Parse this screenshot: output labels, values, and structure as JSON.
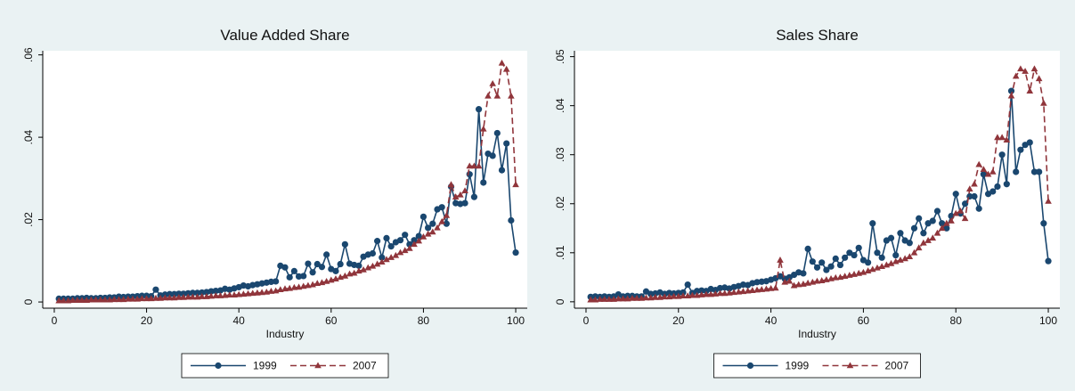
{
  "chart_data": [
    {
      "type": "line",
      "title": "Value Added Share",
      "x_label": "Industry",
      "x": [
        1,
        2,
        3,
        4,
        5,
        6,
        7,
        8,
        9,
        10,
        11,
        12,
        13,
        14,
        15,
        16,
        17,
        18,
        19,
        20,
        21,
        22,
        23,
        24,
        25,
        26,
        27,
        28,
        29,
        30,
        31,
        32,
        33,
        34,
        35,
        36,
        37,
        38,
        39,
        40,
        41,
        42,
        43,
        44,
        45,
        46,
        47,
        48,
        49,
        50,
        51,
        52,
        53,
        54,
        55,
        56,
        57,
        58,
        59,
        60,
        61,
        62,
        63,
        64,
        65,
        66,
        67,
        68,
        69,
        70,
        71,
        72,
        73,
        74,
        75,
        76,
        77,
        78,
        79,
        80,
        81,
        82,
        83,
        84,
        85,
        86,
        87,
        88,
        89,
        90,
        91,
        92,
        93,
        94,
        95,
        96,
        97,
        98,
        99,
        100
      ],
      "series": [
        {
          "name": "1999",
          "color": "#1a476f",
          "marker": "circle",
          "dash": false,
          "values": [
            0.0008,
            0.0008,
            0.0008,
            0.0008,
            0.0009,
            0.0009,
            0.001,
            0.0009,
            0.0009,
            0.001,
            0.001,
            0.0011,
            0.0011,
            0.0013,
            0.0012,
            0.0013,
            0.0013,
            0.0014,
            0.0015,
            0.0015,
            0.0014,
            0.003,
            0.0016,
            0.0018,
            0.0019,
            0.0019,
            0.002,
            0.002,
            0.0021,
            0.0022,
            0.0022,
            0.0023,
            0.0024,
            0.0026,
            0.0027,
            0.0028,
            0.0032,
            0.003,
            0.0033,
            0.0036,
            0.004,
            0.0038,
            0.0041,
            0.0043,
            0.0045,
            0.0047,
            0.0049,
            0.005,
            0.0088,
            0.0084,
            0.006,
            0.0075,
            0.0062,
            0.0063,
            0.0093,
            0.0072,
            0.0092,
            0.0085,
            0.0115,
            0.008,
            0.0075,
            0.0092,
            0.014,
            0.0093,
            0.009,
            0.0088,
            0.011,
            0.0115,
            0.0118,
            0.0148,
            0.0108,
            0.0155,
            0.0135,
            0.0145,
            0.015,
            0.0163,
            0.014,
            0.015,
            0.016,
            0.0207,
            0.018,
            0.019,
            0.0225,
            0.023,
            0.019,
            0.028,
            0.024,
            0.0238,
            0.024,
            0.031,
            0.0255,
            0.0468,
            0.029,
            0.036,
            0.0355,
            0.041,
            0.032,
            0.0385,
            0.0198,
            0.012
          ]
        },
        {
          "name": "2007",
          "color": "#90353b",
          "marker": "triangle",
          "dash": true,
          "values": [
            0.0003,
            0.0003,
            0.0003,
            0.0004,
            0.0004,
            0.0004,
            0.0004,
            0.0005,
            0.0005,
            0.0005,
            0.0005,
            0.0005,
            0.0006,
            0.0006,
            0.0006,
            0.0007,
            0.0007,
            0.0007,
            0.0008,
            0.0008,
            0.0008,
            0.0009,
            0.0009,
            0.001,
            0.001,
            0.001,
            0.0011,
            0.0011,
            0.0012,
            0.0012,
            0.0012,
            0.0013,
            0.0013,
            0.0014,
            0.0015,
            0.0015,
            0.0016,
            0.0017,
            0.0017,
            0.0018,
            0.0019,
            0.002,
            0.0021,
            0.0022,
            0.0023,
            0.0024,
            0.0026,
            0.0027,
            0.003,
            0.0032,
            0.0033,
            0.0035,
            0.0036,
            0.0038,
            0.004,
            0.0042,
            0.0045,
            0.0047,
            0.005,
            0.0053,
            0.0056,
            0.006,
            0.0063,
            0.0068,
            0.007,
            0.0075,
            0.0078,
            0.0083,
            0.0087,
            0.0092,
            0.0097,
            0.0103,
            0.0108,
            0.0113,
            0.012,
            0.0125,
            0.013,
            0.014,
            0.0148,
            0.0158,
            0.0165,
            0.017,
            0.018,
            0.0195,
            0.021,
            0.0285,
            0.0255,
            0.026,
            0.027,
            0.033,
            0.033,
            0.033,
            0.042,
            0.05,
            0.053,
            0.05,
            0.058,
            0.0565,
            0.05,
            0.0285
          ]
        }
      ],
      "xlim": [
        -2.5,
        102.5
      ],
      "xticks": [
        0,
        20,
        40,
        60,
        80,
        100
      ],
      "ylim": [
        -0.0015,
        0.061
      ],
      "yticks": [
        0,
        {
          "value": 0.02,
          "label": ".02"
        },
        {
          "value": 0.04,
          "label": ".04"
        },
        {
          "value": 0.06,
          "label": ".06"
        }
      ]
    },
    {
      "type": "line",
      "title": "Sales Share",
      "x_label": "Industry",
      "x": [
        1,
        2,
        3,
        4,
        5,
        6,
        7,
        8,
        9,
        10,
        11,
        12,
        13,
        14,
        15,
        16,
        17,
        18,
        19,
        20,
        21,
        22,
        23,
        24,
        25,
        26,
        27,
        28,
        29,
        30,
        31,
        32,
        33,
        34,
        35,
        36,
        37,
        38,
        39,
        40,
        41,
        42,
        43,
        44,
        45,
        46,
        47,
        48,
        49,
        50,
        51,
        52,
        53,
        54,
        55,
        56,
        57,
        58,
        59,
        60,
        61,
        62,
        63,
        64,
        65,
        66,
        67,
        68,
        69,
        70,
        71,
        72,
        73,
        74,
        75,
        76,
        77,
        78,
        79,
        80,
        81,
        82,
        83,
        84,
        85,
        86,
        87,
        88,
        89,
        90,
        91,
        92,
        93,
        94,
        95,
        96,
        97,
        98,
        99,
        100
      ],
      "series": [
        {
          "name": "1999",
          "color": "#1a476f",
          "marker": "circle",
          "dash": false,
          "values": [
            0.001,
            0.0011,
            0.001,
            0.0011,
            0.001,
            0.0011,
            0.0015,
            0.0011,
            0.0012,
            0.0012,
            0.0011,
            0.0011,
            0.0021,
            0.0016,
            0.0017,
            0.0019,
            0.0016,
            0.0018,
            0.0017,
            0.0018,
            0.0019,
            0.0035,
            0.0018,
            0.0022,
            0.0023,
            0.0022,
            0.0026,
            0.0024,
            0.0028,
            0.0029,
            0.0027,
            0.003,
            0.0032,
            0.0035,
            0.0034,
            0.0038,
            0.004,
            0.0041,
            0.0042,
            0.0045,
            0.0048,
            0.0052,
            0.0047,
            0.005,
            0.0055,
            0.006,
            0.0058,
            0.0108,
            0.0082,
            0.007,
            0.008,
            0.0065,
            0.0072,
            0.0088,
            0.0075,
            0.009,
            0.01,
            0.0095,
            0.011,
            0.0085,
            0.008,
            0.016,
            0.01,
            0.009,
            0.0125,
            0.013,
            0.0095,
            0.014,
            0.0125,
            0.012,
            0.015,
            0.017,
            0.014,
            0.016,
            0.0165,
            0.0185,
            0.016,
            0.015,
            0.0175,
            0.022,
            0.018,
            0.02,
            0.0215,
            0.0215,
            0.019,
            0.026,
            0.022,
            0.0225,
            0.0235,
            0.03,
            0.024,
            0.043,
            0.0265,
            0.031,
            0.032,
            0.0325,
            0.0265,
            0.0265,
            0.016,
            0.0083
          ]
        },
        {
          "name": "2007",
          "color": "#90353b",
          "marker": "triangle",
          "dash": true,
          "values": [
            0.0004,
            0.0004,
            0.0005,
            0.0005,
            0.0005,
            0.0005,
            0.0006,
            0.0006,
            0.0006,
            0.0007,
            0.0007,
            0.0007,
            0.0008,
            0.0008,
            0.0009,
            0.0009,
            0.001,
            0.001,
            0.0011,
            0.0011,
            0.0012,
            0.0012,
            0.0013,
            0.0013,
            0.0014,
            0.0015,
            0.0015,
            0.0016,
            0.0017,
            0.0017,
            0.0018,
            0.0019,
            0.002,
            0.0021,
            0.0022,
            0.0023,
            0.0024,
            0.0025,
            0.0026,
            0.0027,
            0.0028,
            0.0085,
            0.004,
            0.0042,
            0.0033,
            0.0035,
            0.0036,
            0.0038,
            0.004,
            0.0042,
            0.0043,
            0.0045,
            0.0047,
            0.0049,
            0.005,
            0.0052,
            0.0054,
            0.0056,
            0.0058,
            0.006,
            0.0063,
            0.0066,
            0.0069,
            0.0072,
            0.0075,
            0.0078,
            0.0082,
            0.0085,
            0.0088,
            0.0092,
            0.01,
            0.011,
            0.012,
            0.0125,
            0.013,
            0.014,
            0.015,
            0.016,
            0.0165,
            0.018,
            0.0185,
            0.017,
            0.023,
            0.024,
            0.028,
            0.027,
            0.026,
            0.0265,
            0.0335,
            0.0335,
            0.033,
            0.042,
            0.046,
            0.0475,
            0.047,
            0.043,
            0.0475,
            0.0455,
            0.0405,
            0.0205
          ]
        }
      ],
      "xlim": [
        -2.5,
        102.5
      ],
      "xticks": [
        0,
        20,
        40,
        60,
        80,
        100
      ],
      "ylim": [
        -0.0013,
        0.0512
      ],
      "yticks": [
        0,
        {
          "value": 0.01,
          "label": ".01"
        },
        {
          "value": 0.02,
          "label": ".02"
        },
        {
          "value": 0.03,
          "label": ".03"
        },
        {
          "value": 0.04,
          "label": ".04"
        },
        {
          "value": 0.05,
          "label": ".05"
        }
      ]
    }
  ]
}
